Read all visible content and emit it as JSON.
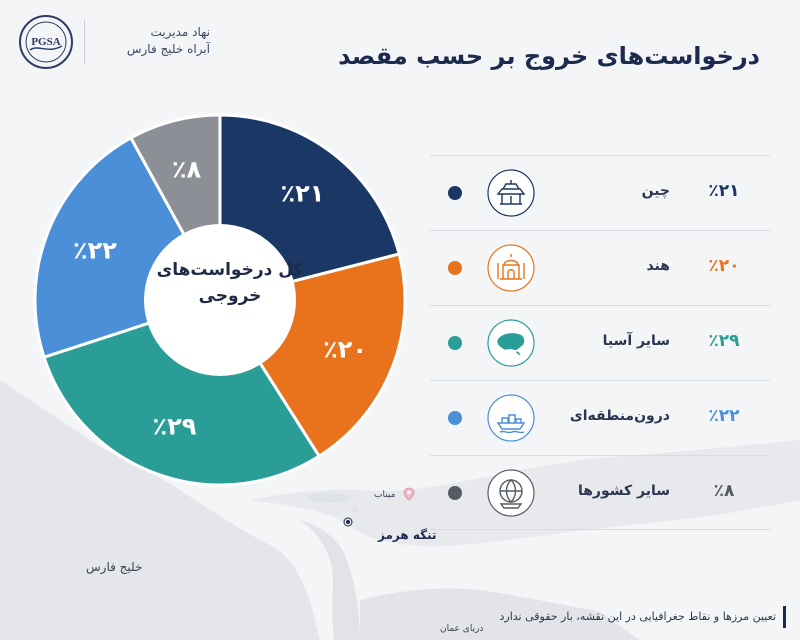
{
  "header": {
    "logo_text": "PGSA",
    "org_line1": "نهاد مدیریت",
    "org_line2": "آبراه خلیج فارس",
    "title": "درخواست‌های خروج بر حسب مقصد"
  },
  "chart_data": {
    "type": "pie",
    "variant": "donut",
    "title": "درخواست‌های خروج بر حسب مقصد",
    "center_label_line1": "کل درخواست‌های",
    "center_label_line2": "خروجی",
    "slices": [
      {
        "name": "چین",
        "value": 21,
        "label": "٪۲۱",
        "color": "#1b3766",
        "icon": "temple-icon"
      },
      {
        "name": "هند",
        "value": 20,
        "label": "٪۲۰",
        "color": "#e9721c",
        "icon": "taj-mahal-icon"
      },
      {
        "name": "سایر آسیا",
        "value": 29,
        "label": "٪۲۹",
        "color": "#2a9d96",
        "icon": "asia-map-icon"
      },
      {
        "name": "درون‌منطقه‌ای",
        "value": 22,
        "label": "٪۲۲",
        "color": "#4a8fd8",
        "icon": "cargo-ship-icon"
      },
      {
        "name": "سایر کشورها",
        "value": 8,
        "label": "٪۸",
        "color": "#8c8f95",
        "icon": "globe-ship-icon"
      }
    ]
  },
  "map": {
    "gulf_label": "خلیج فارس",
    "oman_label": "دریای عمان",
    "minab_label": "میناب",
    "hormuz_label": "تنگه هرمز"
  },
  "footer": {
    "disclaimer": "تعیین مرزها و نقاط جغرافیایی در این نقشه، بار حقوقی ندارد"
  }
}
